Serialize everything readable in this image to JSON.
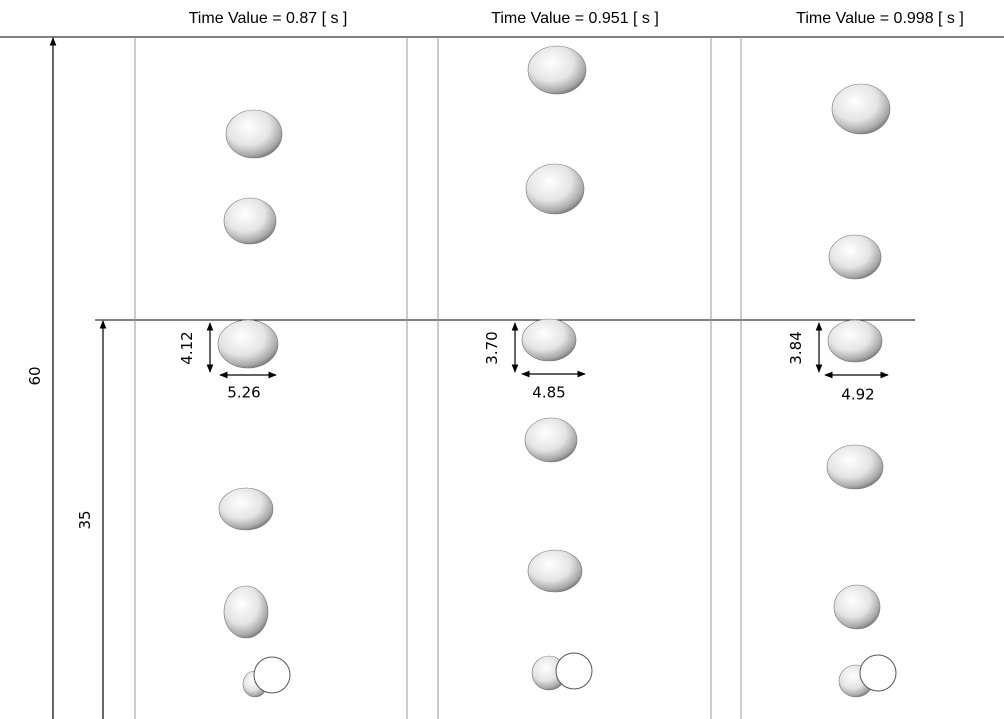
{
  "dimensions": {
    "total_height": "60",
    "lower_height": "35"
  },
  "panels": [
    {
      "title": "Time Value = 0.87 [ s ]",
      "bubble_height": "4.12",
      "bubble_width": "5.26"
    },
    {
      "title": "Time Value = 0.951 [ s ]",
      "bubble_height": "3.70",
      "bubble_width": "4.85"
    },
    {
      "title": "Time Value = 0.998 [ s ]",
      "bubble_height": "3.84",
      "bubble_width": "4.92"
    }
  ]
}
